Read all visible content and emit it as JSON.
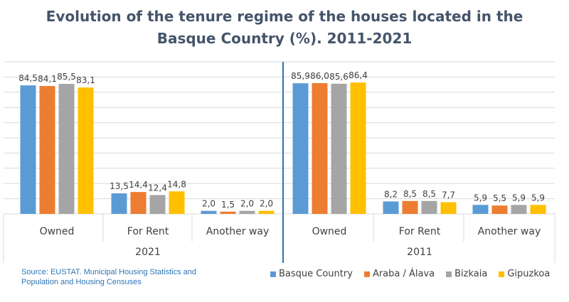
{
  "title_line1": "Evolution of the tenure regime of the houses located in the",
  "title_line2": "Basque Country (%). 2011-2021",
  "source_line1": "Source: EUSTAT. Municipal Housing Statistics and",
  "source_line2": "Population and Housing Censuses",
  "colors": {
    "Basque Country": "#5b9bd5",
    "Araba / Álava": "#ed7d31",
    "Bizkaia": "#a5a5a5",
    "Gipuzkoa": "#ffc000",
    "divider": "#2e75b6",
    "grid": "#d9d9d9"
  },
  "chart_data": {
    "type": "bar",
    "title": "Evolution of the tenure regime of the houses located in the Basque Country (%). 2011-2021",
    "ylim": [
      0,
      100
    ],
    "grid": true,
    "legend_position": "bottom-right",
    "series_names": [
      "Basque Country",
      "Araba / Álava",
      "Bizkaia",
      "Gipuzkoa"
    ],
    "panels": [
      {
        "year": "2021",
        "categories": [
          "Owned",
          "For Rent",
          "Another way"
        ],
        "series": [
          {
            "name": "Basque Country",
            "values": [
              84.5,
              13.5,
              2.0
            ]
          },
          {
            "name": "Araba / Álava",
            "values": [
              84.1,
              14.4,
              1.5
            ]
          },
          {
            "name": "Bizkaia",
            "values": [
              85.5,
              12.4,
              2.0
            ]
          },
          {
            "name": "Gipuzkoa",
            "values": [
              83.1,
              14.8,
              2.0
            ]
          }
        ],
        "labels": [
          [
            "84,5",
            "84,1",
            "85,5",
            "83,1"
          ],
          [
            "13,5",
            "14,4",
            "12,4",
            "14,8"
          ],
          [
            "2,0",
            "1,5",
            "2,0",
            "2,0"
          ]
        ]
      },
      {
        "year": "2011",
        "categories": [
          "Owned",
          "For Rent",
          "Another way"
        ],
        "series": [
          {
            "name": "Basque Country",
            "values": [
              85.9,
              8.2,
              5.9
            ]
          },
          {
            "name": "Araba / Álava",
            "values": [
              86.0,
              8.5,
              5.5
            ]
          },
          {
            "name": "Bizkaia",
            "values": [
              85.6,
              8.5,
              5.9
            ]
          },
          {
            "name": "Gipuzkoa",
            "values": [
              86.4,
              7.7,
              5.9
            ]
          }
        ],
        "labels": [
          [
            "85,9",
            "86,0",
            "85,6",
            "86,4"
          ],
          [
            "8,2",
            "8,5",
            "8,5",
            "7,7"
          ],
          [
            "5,9",
            "5,5",
            "5,9",
            "5,9"
          ]
        ]
      }
    ]
  }
}
